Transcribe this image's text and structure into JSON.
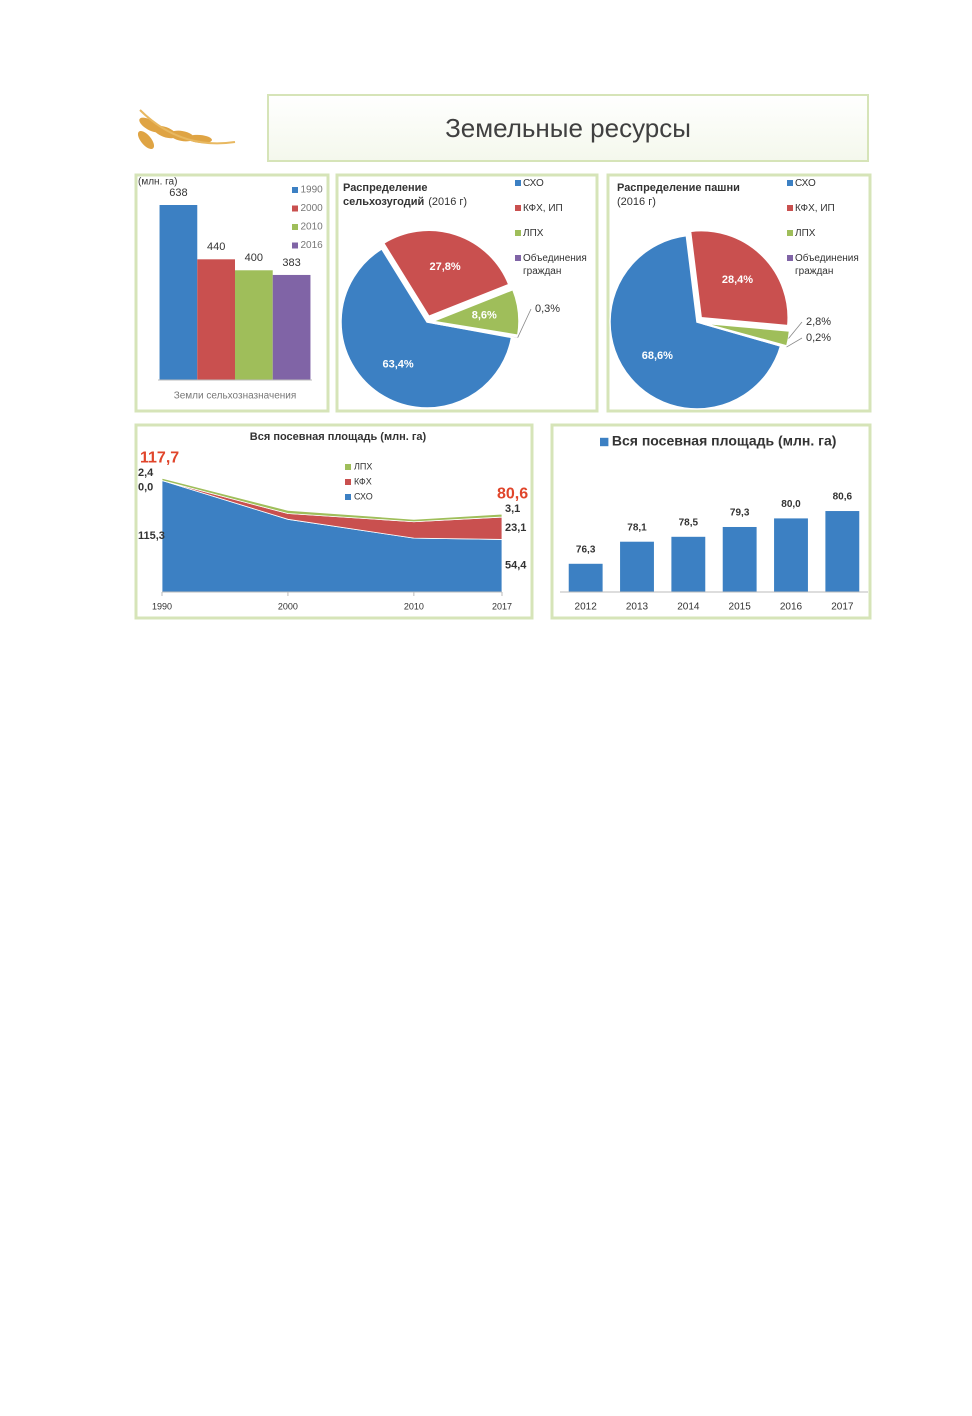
{
  "header": {
    "title": "Земельные ресурсы"
  },
  "chart_data": [
    {
      "type": "bar",
      "y_label": "(млн. га)",
      "categories": [
        "Земли сельхозназначения"
      ],
      "series": [
        {
          "name": "1990",
          "color": "#3c80c3",
          "values": [
            638
          ]
        },
        {
          "name": "2000",
          "color": "#c9504f",
          "values": [
            440
          ]
        },
        {
          "name": "2010",
          "color": "#9fbe5a",
          "values": [
            400
          ]
        },
        {
          "name": "2016",
          "color": "#8064a6",
          "values": [
            383
          ]
        }
      ],
      "ylim": [
        0,
        700
      ]
    },
    {
      "type": "pie",
      "title": "Распределение сельхозугодий",
      "subtitle": "(2016 г)",
      "categories": [
        "СХО",
        "КФХ, ИП",
        "ЛПХ",
        "Объединения граждан"
      ],
      "values": [
        63.4,
        27.8,
        8.6,
        0.3
      ],
      "value_labels": [
        "63,4%",
        "27,8%",
        "8,6%",
        "0,3%"
      ],
      "colors": [
        "#3c80c3",
        "#c9504f",
        "#9fbe5a",
        "#8064a6"
      ]
    },
    {
      "type": "pie",
      "title": "Распределение пашни",
      "subtitle": "(2016 г)",
      "categories": [
        "СХО",
        "КФХ, ИП",
        "ЛПХ",
        "Объединения граждан"
      ],
      "values": [
        68.6,
        28.4,
        2.8,
        0.2
      ],
      "value_labels": [
        "68,6%",
        "28,4%",
        "2,8%",
        "0,2%"
      ],
      "colors": [
        "#3c80c3",
        "#c9504f",
        "#9fbe5a",
        "#8064a6"
      ]
    },
    {
      "type": "area",
      "title": "Вся посевная площадь (млн. га)",
      "x": [
        1990,
        2000,
        2010,
        2017
      ],
      "xlim": [
        1990,
        2017
      ],
      "xticks": [
        1990,
        2000,
        2010,
        2017
      ],
      "ylim": [
        0,
        120
      ],
      "series": [
        {
          "name": "СХО",
          "color": "#3c80c3",
          "values": [
            115.3,
            75.2,
            55.7,
            54.4
          ],
          "value_labels": [
            "115,3",
            null,
            null,
            "54,4"
          ]
        },
        {
          "name": "КФХ",
          "color": "#c9504f",
          "values": [
            0,
            6.0,
            17.0,
            23.1
          ],
          "value_labels": [
            "0,0",
            null,
            null,
            "23,1"
          ]
        },
        {
          "name": "ЛПХ",
          "color": "#9fbe5a",
          "values": [
            2.4,
            3.3,
            2.5,
            3.1
          ],
          "value_labels": [
            "2,4",
            null,
            null,
            "3,1"
          ]
        }
      ],
      "totals": [
        117.7,
        null,
        null,
        80.6
      ],
      "total_labels": [
        "117,7",
        null,
        null,
        "80,6"
      ],
      "total_color": "#e0452b"
    },
    {
      "type": "bar",
      "categories": [
        "2012",
        "2013",
        "2014",
        "2015",
        "2016",
        "2017"
      ],
      "series": [
        {
          "name": "Вся посевная площадь (млн. га)",
          "color": "#3c80c3",
          "values": [
            76.3,
            78.1,
            78.5,
            79.3,
            80.0,
            80.6
          ],
          "value_labels": [
            "76,3",
            "78,1",
            "78,5",
            "79,3",
            "80,0",
            "80,6"
          ]
        }
      ],
      "ylim": [
        74,
        81.5
      ]
    }
  ]
}
